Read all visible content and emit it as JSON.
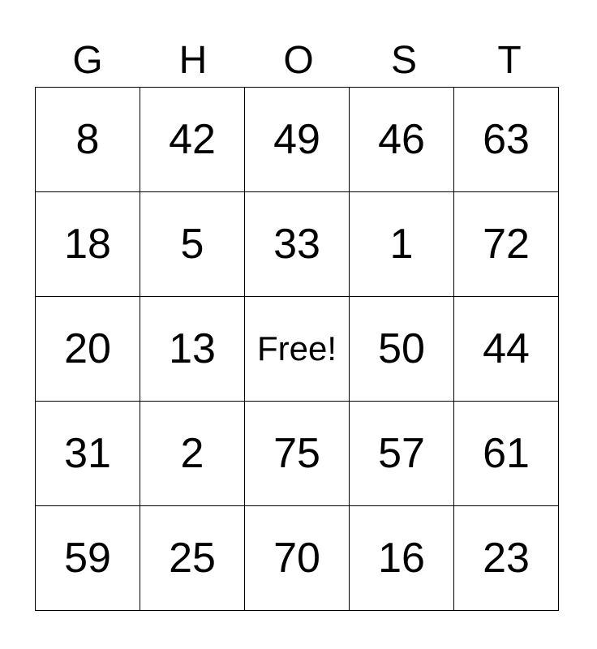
{
  "header": [
    "G",
    "H",
    "O",
    "S",
    "T"
  ],
  "rows": [
    [
      "8",
      "42",
      "49",
      "46",
      "63"
    ],
    [
      "18",
      "5",
      "33",
      "1",
      "72"
    ],
    [
      "20",
      "13",
      "Free!",
      "50",
      "44"
    ],
    [
      "31",
      "2",
      "75",
      "57",
      "61"
    ],
    [
      "59",
      "25",
      "70",
      "16",
      "23"
    ]
  ]
}
